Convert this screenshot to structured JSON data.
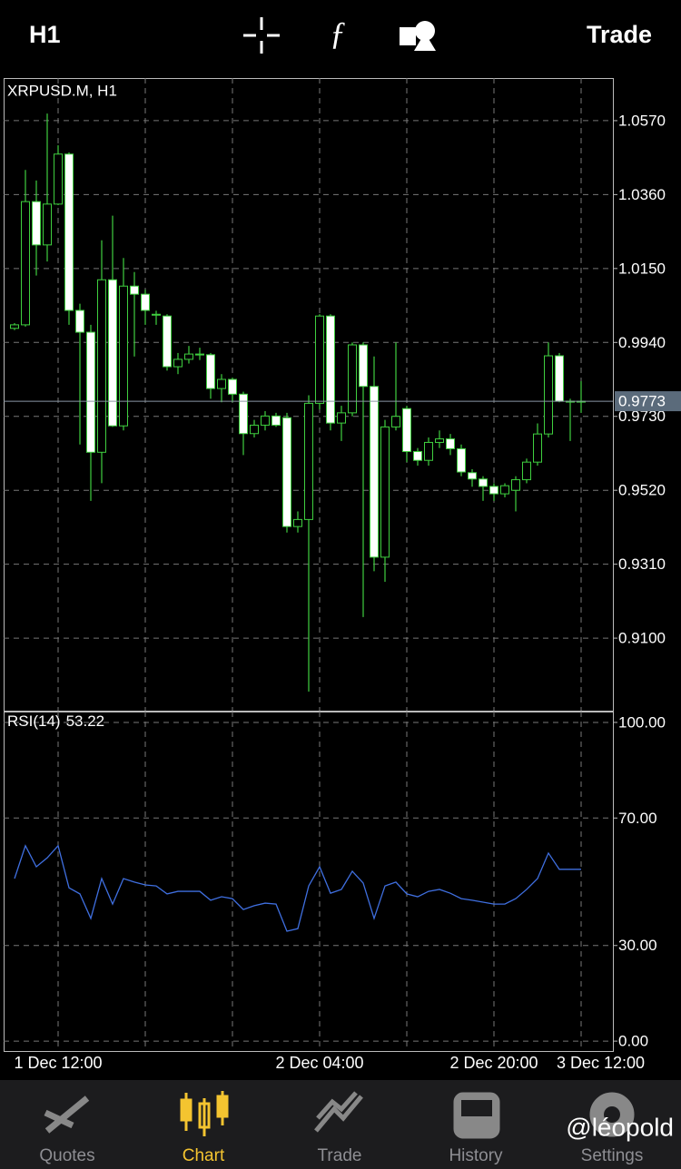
{
  "header": {
    "timeframe": "H1",
    "trade": "Trade"
  },
  "chart_data": [
    {
      "type": "candlestick",
      "title": "XRPUSD.M, H1",
      "categories": [
        null,
        null,
        null,
        null,
        "1 Dec 12:00",
        null,
        null,
        null,
        null,
        null,
        null,
        null,
        null,
        null,
        null,
        null,
        null,
        null,
        null,
        null,
        null,
        null,
        null,
        null,
        null,
        null,
        null,
        null,
        "2 Dec 04:00",
        null,
        null,
        null,
        null,
        null,
        null,
        null,
        null,
        null,
        null,
        null,
        null,
        null,
        null,
        null,
        "2 Dec 20:00",
        null,
        null,
        null,
        null,
        null,
        null,
        null,
        "3 Dec 12:00"
      ],
      "open": [
        0.998,
        0.999,
        1.034,
        1.0217,
        1.0333,
        1.0475,
        1.0031,
        0.9969,
        0.9628,
        1.0118,
        0.9703,
        1.01,
        1.0077,
        1.002,
        1.0015,
        0.9871,
        0.9892,
        0.9907,
        0.9905,
        0.9809,
        0.9835,
        0.9793,
        0.9681,
        0.9705,
        0.9731,
        0.9726,
        0.9417,
        0.9437,
        0.9767,
        1.0015,
        0.9711,
        0.974,
        0.9933,
        0.9815,
        0.933,
        0.97,
        0.9752,
        0.963,
        0.9605,
        0.9656,
        0.9666,
        0.9638,
        0.957,
        0.9552,
        0.9531,
        0.951,
        0.952,
        0.955,
        0.96,
        0.968,
        0.9902,
        0.9773,
        0.9773
      ],
      "close": [
        0.999,
        1.034,
        1.0217,
        1.0333,
        1.0475,
        1.0031,
        0.9969,
        0.9628,
        1.0118,
        0.9703,
        1.01,
        1.0077,
        1.0031,
        1.0018,
        0.9871,
        0.9892,
        0.9907,
        0.9905,
        0.9809,
        0.9835,
        0.9793,
        0.9681,
        0.9705,
        0.9731,
        0.9705,
        0.9417,
        0.9437,
        0.9767,
        1.0015,
        0.9711,
        0.974,
        0.9933,
        0.9815,
        0.933,
        0.97,
        0.973,
        0.963,
        0.9605,
        0.9656,
        0.9666,
        0.9638,
        0.9572,
        0.9552,
        0.9531,
        0.951,
        0.9533,
        0.955,
        0.96,
        0.968,
        0.9902,
        0.9773,
        0.9773,
        0.9773
      ],
      "high": [
        0.9995,
        1.043,
        1.04,
        1.059,
        1.05,
        1.048,
        1.005,
        0.999,
        1.023,
        1.03,
        1.018,
        1.014,
        1.009,
        1.003,
        1.002,
        0.991,
        0.993,
        0.9925,
        0.991,
        0.985,
        0.984,
        0.98,
        0.972,
        0.9745,
        0.974,
        0.974,
        0.946,
        0.979,
        1.002,
        1.002,
        0.976,
        0.994,
        0.994,
        0.99,
        0.972,
        0.994,
        0.976,
        0.964,
        0.967,
        0.969,
        0.968,
        0.965,
        0.958,
        0.956,
        0.954,
        0.954,
        0.956,
        0.961,
        0.971,
        0.994,
        0.991,
        0.978,
        0.983
      ],
      "low": [
        0.9975,
        0.9985,
        1.013,
        1.017,
        1.033,
        0.999,
        0.965,
        0.949,
        0.954,
        0.97,
        0.969,
        0.99,
        0.999,
        0.999,
        0.986,
        0.985,
        0.988,
        0.989,
        0.978,
        0.977,
        0.977,
        0.962,
        0.967,
        0.969,
        0.97,
        0.94,
        0.94,
        0.8948,
        0.975,
        0.969,
        0.966,
        0.973,
        0.916,
        0.929,
        0.926,
        0.969,
        0.96,
        0.959,
        0.959,
        0.964,
        0.962,
        0.956,
        0.953,
        0.949,
        0.949,
        0.95,
        0.946,
        0.954,
        0.959,
        0.967,
        0.977,
        0.966,
        0.974
      ],
      "ylim": [
        0.8894,
        1.0691
      ],
      "yticks": [
        {
          "value": 1.057,
          "label": "1.0570"
        },
        {
          "value": 1.036,
          "label": "1.0360"
        },
        {
          "value": 1.015,
          "label": "1.0150"
        },
        {
          "value": 0.994,
          "label": "0.9940"
        },
        {
          "value": 0.973,
          "label": "0.9730"
        },
        {
          "value": 0.952,
          "label": "0.9520"
        },
        {
          "value": 0.931,
          "label": "0.9310"
        },
        {
          "value": 0.91,
          "label": "0.9100"
        }
      ],
      "current_price": 0.9773,
      "up_color": "#000000",
      "down_color": "#ffffff",
      "line_color": "#3fcf3f"
    },
    {
      "type": "line",
      "title": "RSI(14)",
      "value": 53.22,
      "values": [
        51,
        61.3,
        54.7,
        57.5,
        61.3,
        48.1,
        46.2,
        38.5,
        51,
        43,
        51,
        49.9,
        49,
        48.7,
        46.2,
        47,
        47,
        47,
        44.2,
        45.3,
        44.7,
        41.3,
        42.5,
        43.3,
        43,
        34.5,
        35.3,
        48.7,
        54.7,
        46.4,
        47.6,
        53.3,
        49.6,
        38.5,
        48.7,
        49.9,
        46.2,
        45.3,
        47,
        47.6,
        46.4,
        44.7,
        44.2,
        43.6,
        43,
        43,
        44.7,
        47.6,
        51,
        59,
        53.9,
        53.9,
        53.9
      ],
      "ylim": [
        -3.1,
        103.4
      ],
      "yticks": [
        {
          "value": 100,
          "label": "100.00"
        },
        {
          "value": 70,
          "label": "70.00"
        },
        {
          "value": 30,
          "label": "30.00"
        },
        {
          "value": 0,
          "label": "0.00"
        }
      ],
      "color": "#3f6fe0"
    }
  ],
  "tabs": [
    {
      "label": "Quotes"
    },
    {
      "label": "Chart"
    },
    {
      "label": "Trade"
    },
    {
      "label": "History"
    },
    {
      "label": "Settings"
    }
  ],
  "watermark": "@léopold"
}
